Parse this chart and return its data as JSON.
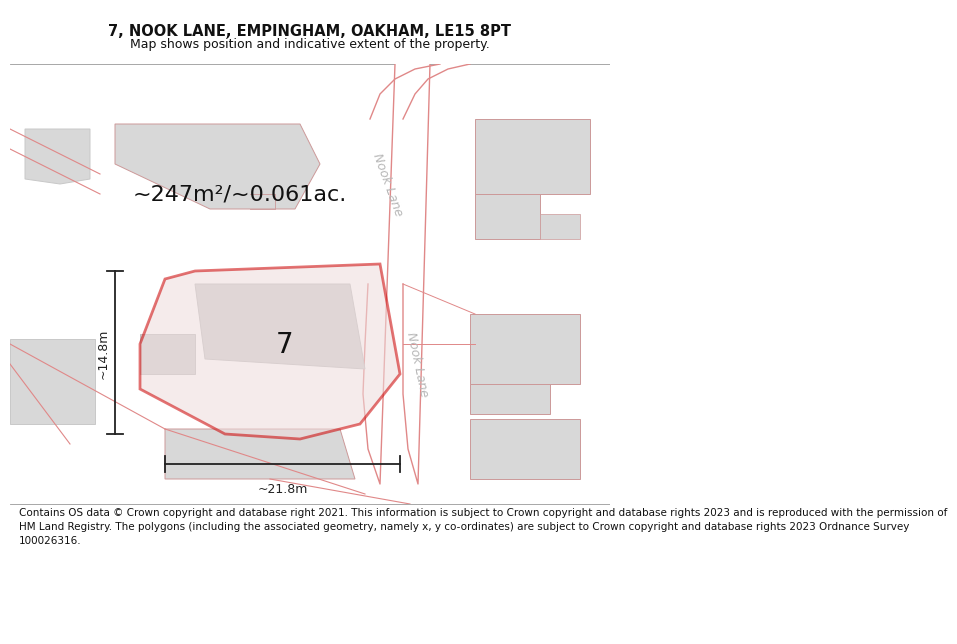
{
  "title": "7, NOOK LANE, EMPINGHAM, OAKHAM, LE15 8PT",
  "subtitle": "Map shows position and indicative extent of the property.",
  "footer": "Contains OS data © Crown copyright and database right 2021. This information is subject to Crown copyright and database rights 2023 and is reproduced with the permission of\nHM Land Registry. The polygons (including the associated geometry, namely x, y co-ordinates) are subject to Crown copyright and database rights 2023 Ordnance Survey\n100026316.",
  "area_text": "~247m²/~0.061ac.",
  "label_number": "7",
  "dim_height": "~14.8m",
  "dim_width": "~21.8m",
  "road_label_upper": "Nook Lane",
  "road_label_lower": "Nook Lane",
  "bg_color": "#f5f5f5",
  "road_fill": "#ffffff",
  "road_line_color": "#e08888",
  "building_fill": "#d8d8d8",
  "building_edge_gray": "#c8c8c8",
  "building_edge_pink": "#cc9999",
  "property_fill": "#eedcdc",
  "property_edge": "#cc0000",
  "dim_color": "#222222",
  "text_color": "#111111",
  "road_text_color": "#b8b8b8",
  "title_fontsize": 10.5,
  "subtitle_fontsize": 9.0,
  "footer_fontsize": 7.5,
  "area_fontsize": 16,
  "label_fontsize": 20,
  "dim_fontsize": 9,
  "road_fontsize": 9
}
